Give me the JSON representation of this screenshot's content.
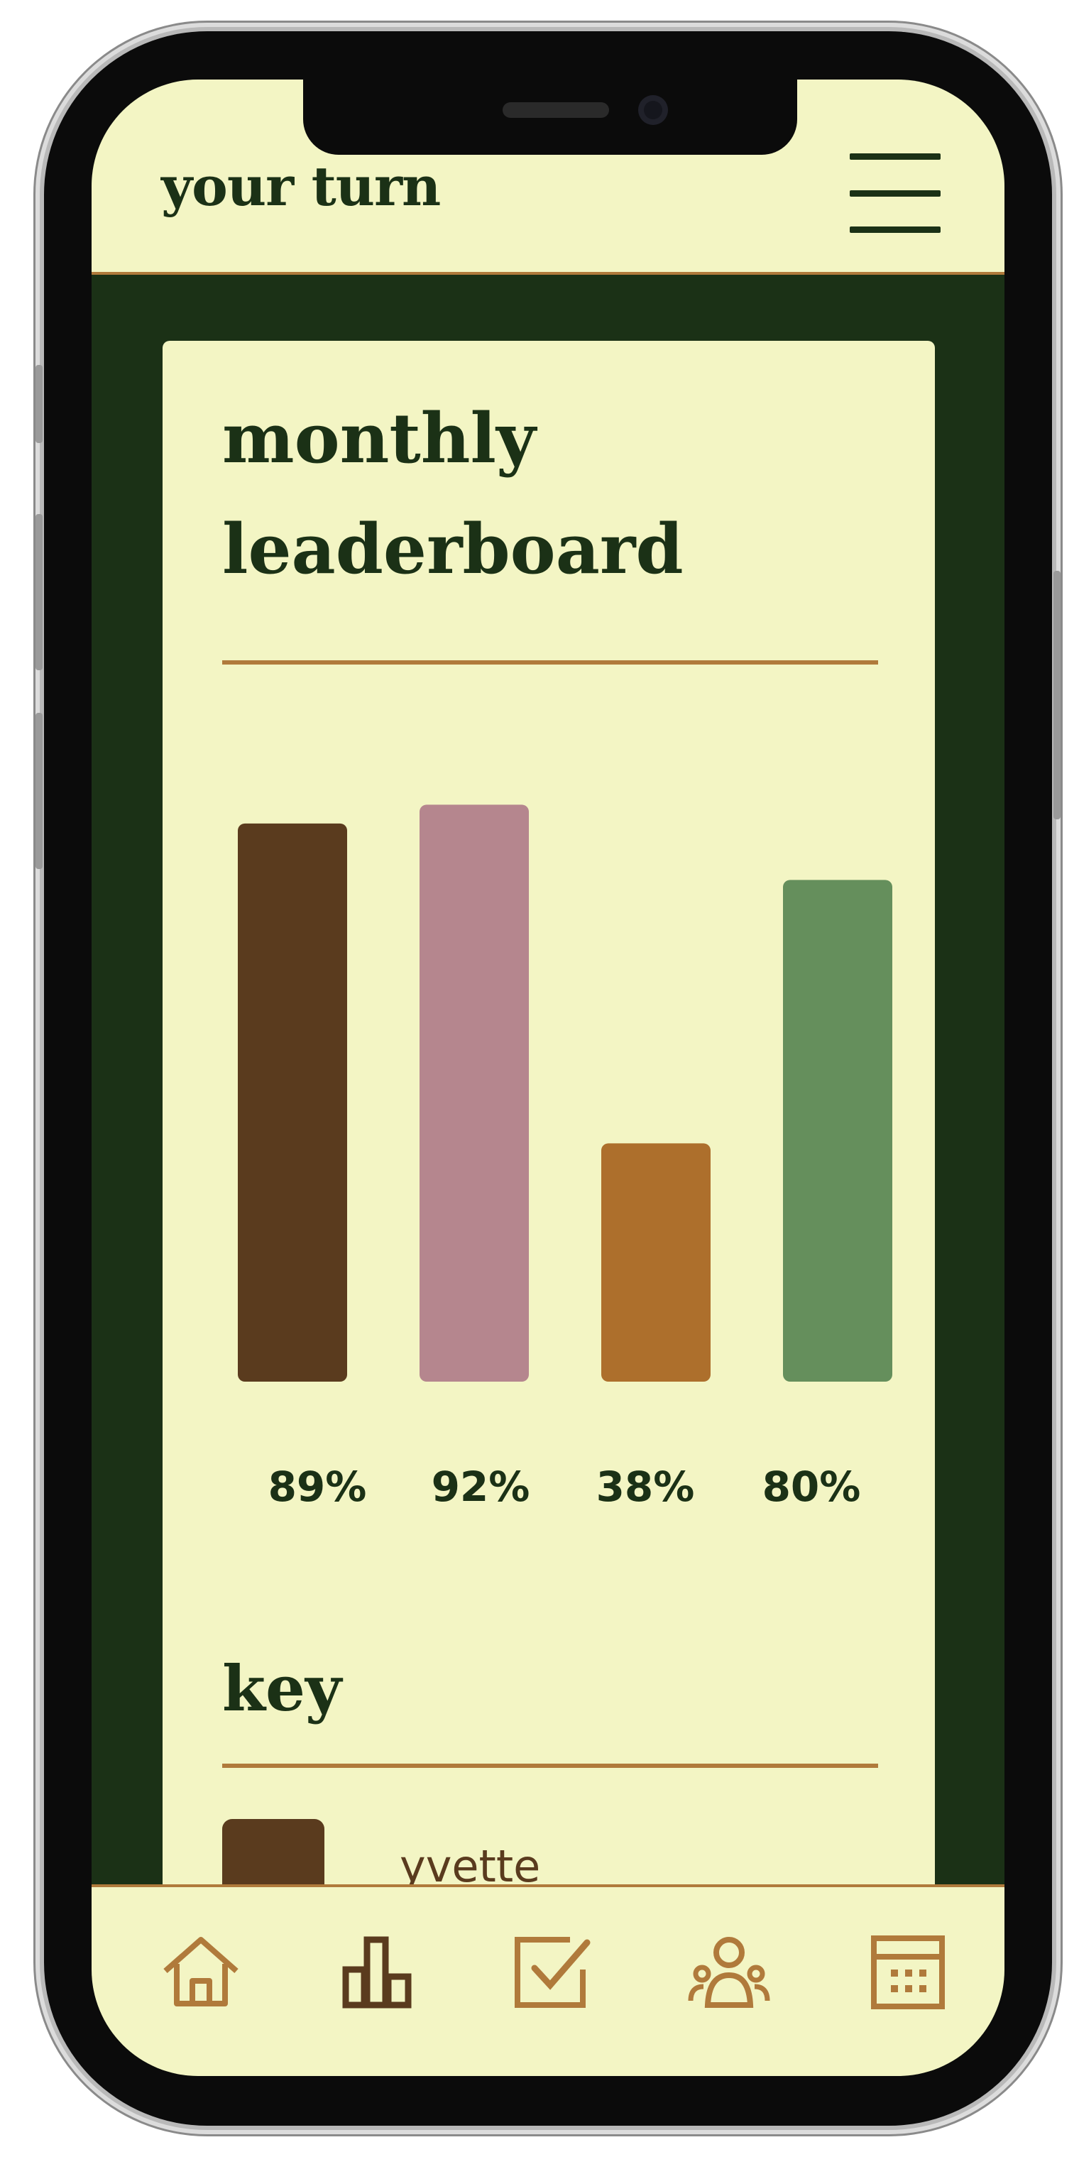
{
  "app": {
    "title": "your turn"
  },
  "header": {
    "menu_icon": "hamburger-menu-icon"
  },
  "leaderboard": {
    "title": "monthly leaderboard"
  },
  "chart_data": {
    "type": "bar",
    "categories": [
      "yvette",
      "",
      "",
      ""
    ],
    "values": [
      89,
      92,
      38,
      80
    ],
    "value_labels": [
      "89%",
      "92%",
      "38%",
      "80%"
    ],
    "colors": [
      "#5a3b1e",
      "#b5868e",
      "#ad6f2c",
      "#658f5c"
    ],
    "ylim": [
      0,
      100
    ]
  },
  "key": {
    "title": "key",
    "items": [
      {
        "label": "yvette",
        "color": "#5a3b1e"
      }
    ]
  },
  "bottom_nav": {
    "items": [
      {
        "name": "home",
        "icon": "home-icon"
      },
      {
        "name": "leaderboard",
        "icon": "bar-chart-icon",
        "active": true
      },
      {
        "name": "tasks",
        "icon": "checkbox-icon"
      },
      {
        "name": "group",
        "icon": "users-icon"
      },
      {
        "name": "calendar",
        "icon": "calendar-icon"
      }
    ]
  },
  "colors": {
    "background": "#1b3116",
    "surface": "#f3f5c4",
    "accent": "#b07a3b",
    "text": "#1b3116"
  }
}
